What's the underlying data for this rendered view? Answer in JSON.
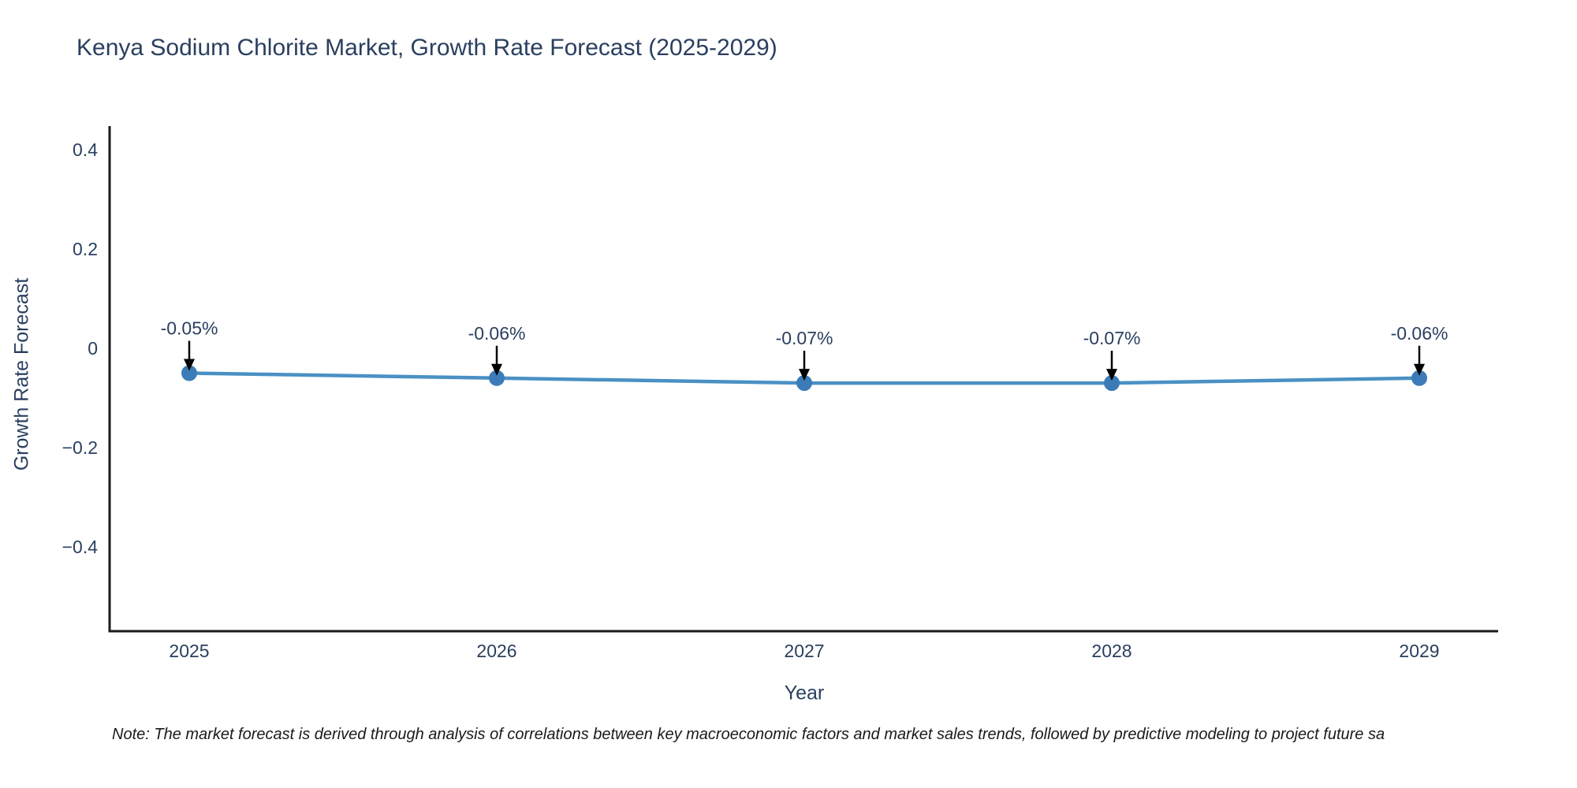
{
  "chart": {
    "title": "Kenya Sodium Chlorite Market, Growth Rate Forecast (2025-2029)",
    "xlabel": "Year",
    "ylabel": "Growth Rate Forecast",
    "note": "Note: The market forecast is derived through analysis of correlations between key macroeconomic factors and market sales trends, followed by predictive modeling to project future sa"
  },
  "chart_data": {
    "type": "line",
    "title": "Kenya Sodium Chlorite Market, Growth Rate Forecast (2025-2029)",
    "xlabel": "Year",
    "ylabel": "Growth Rate Forecast",
    "categories": [
      "2025",
      "2026",
      "2027",
      "2028",
      "2029"
    ],
    "series": [
      {
        "name": "Growth Rate Forecast",
        "values": [
          -0.05,
          -0.06,
          -0.07,
          -0.07,
          -0.06
        ]
      }
    ],
    "point_labels": [
      "-0.05%",
      "-0.06%",
      "-0.07%",
      "-0.07%",
      "-0.06%"
    ],
    "yticks": {
      "values": [
        0.4,
        0.2,
        0,
        -0.2,
        -0.4
      ],
      "labels": [
        "0.4",
        "0.2",
        "0",
        "−0.2",
        "−0.4"
      ]
    },
    "ylim": [
      -0.57,
      0.46
    ],
    "grid": false,
    "legend": "none",
    "annotation_arrows": "down",
    "colors": {
      "line": "#4a90c4",
      "marker": "#3b7cb8",
      "arrow": "#000000",
      "axis": "#1a1a1a",
      "tick_text": "#2a3f5f",
      "annotation_text": "#2a3f5f",
      "title_text": "#2a3f5f",
      "note_text": "#1a1a1a",
      "background": "#ffffff"
    }
  }
}
